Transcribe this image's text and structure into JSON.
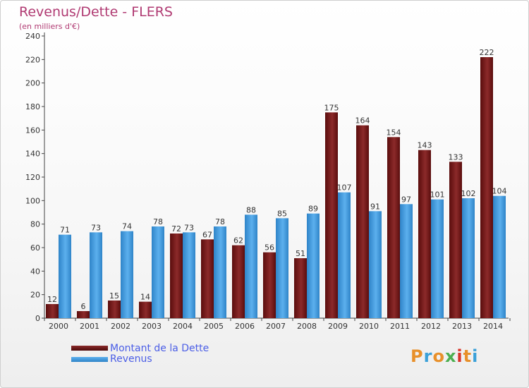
{
  "header": {
    "title": "Revenus/Dette - FLERS",
    "subtitle": "(en milliers d'€)"
  },
  "colors": {
    "debt": "#7a1a1a",
    "revenue": "#3f98da",
    "title": "#b03a72",
    "legend_text": "#4b5ee6"
  },
  "chart_data": {
    "type": "bar",
    "categories": [
      "2000",
      "2001",
      "2002",
      "2003",
      "2004",
      "2005",
      "2006",
      "2007",
      "2008",
      "2009",
      "2010",
      "2011",
      "2012",
      "2013",
      "2014"
    ],
    "series": [
      {
        "name": "Montant de la Dette",
        "values": [
          12,
          6,
          15,
          14,
          72,
          67,
          62,
          56,
          51,
          175,
          164,
          154,
          143,
          133,
          222
        ]
      },
      {
        "name": "Revenus",
        "values": [
          71,
          73,
          74,
          78,
          73,
          78,
          88,
          85,
          89,
          107,
          91,
          97,
          101,
          102,
          104
        ]
      }
    ],
    "title": "Revenus/Dette - FLERS",
    "subtitle": "(en milliers d'€)",
    "ylim": [
      0,
      240
    ],
    "yticks": [
      0,
      20,
      40,
      60,
      80,
      100,
      120,
      140,
      160,
      180,
      200,
      220,
      240
    ],
    "grid": false,
    "legend": "bottom-left"
  },
  "legend": {
    "items": [
      {
        "label": "Montant de la Dette"
      },
      {
        "label": "Revenus"
      }
    ]
  },
  "logo": {
    "letters": [
      "P",
      "r",
      "o",
      "x",
      "i",
      "t",
      "i"
    ]
  }
}
